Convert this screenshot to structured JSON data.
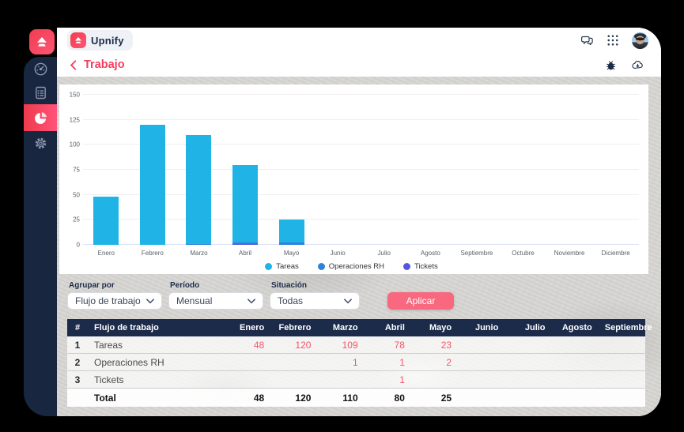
{
  "app": {
    "brand": "Upnify",
    "breadcrumb": "Trabajo"
  },
  "topbar": {
    "icons": [
      "chat-icon",
      "apps-grid-icon",
      "avatar"
    ]
  },
  "subheader": {
    "icons": [
      "bug-icon",
      "cloud-download-icon"
    ]
  },
  "sidebar": {
    "items": [
      {
        "name": "dashboard",
        "icon": "gauge-icon",
        "active": false
      },
      {
        "name": "reports",
        "icon": "checklist-icon",
        "active": false
      },
      {
        "name": "charts",
        "icon": "pie-chart-icon",
        "active": true
      },
      {
        "name": "settings",
        "icon": "gear-icon",
        "active": false
      }
    ],
    "active_color": "#ee3a4c"
  },
  "filters": {
    "groups": [
      {
        "label": "Agrupar por",
        "value": "Flujo de trabajo"
      },
      {
        "label": "Período",
        "value": "Mensual"
      },
      {
        "label": "Situación",
        "value": "Todas"
      }
    ],
    "apply_label": "Aplicar"
  },
  "chart_data": {
    "type": "bar",
    "stacked": true,
    "title": "",
    "xlabel": "",
    "ylabel": "",
    "ylim": [
      0,
      150
    ],
    "yticks": [
      0,
      25,
      50,
      75,
      100,
      125,
      150
    ],
    "grid": true,
    "legend_position": "bottom",
    "categories": [
      "Enero",
      "Febrero",
      "Marzo",
      "Abril",
      "Mayo",
      "Junio",
      "Julio",
      "Agosto",
      "Septiembre",
      "Octubre",
      "Noviembre",
      "Diciembre"
    ],
    "series": [
      {
        "name": "Tickets",
        "color": "#5457da",
        "values": [
          0,
          0,
          0,
          1,
          0,
          0,
          0,
          0,
          0,
          0,
          0,
          0
        ]
      },
      {
        "name": "Operaciones RH",
        "color": "#2d82dc",
        "values": [
          0,
          0,
          1,
          1,
          2,
          0,
          0,
          0,
          0,
          0,
          0,
          0
        ]
      },
      {
        "name": "Tareas",
        "color": "#1fb4e5",
        "values": [
          48,
          120,
          109,
          78,
          23,
          0,
          0,
          0,
          0,
          0,
          0,
          0
        ]
      }
    ],
    "legend_order": [
      "Tareas",
      "Operaciones RH",
      "Tickets"
    ]
  },
  "table": {
    "headers": [
      "#",
      "Flujo de trabajo",
      "Enero",
      "Febrero",
      "Marzo",
      "Abril",
      "Mayo",
      "Junio",
      "Julio",
      "Agosto",
      "Septiembre"
    ],
    "rows": [
      {
        "num": "1",
        "label": "Tareas",
        "values": [
          "48",
          "120",
          "109",
          "78",
          "23",
          "",
          "",
          "",
          ""
        ]
      },
      {
        "num": "2",
        "label": "Operaciones RH",
        "values": [
          "",
          "",
          "1",
          "1",
          "2",
          "",
          "",
          "",
          ""
        ]
      },
      {
        "num": "3",
        "label": "Tickets",
        "values": [
          "",
          "",
          "",
          "1",
          "",
          "",
          "",
          "",
          ""
        ]
      }
    ],
    "total": {
      "label": "Total",
      "values": [
        "48",
        "120",
        "110",
        "80",
        "25",
        "",
        "",
        "",
        ""
      ]
    }
  },
  "colors": {
    "sidebar_navy": "#18263f",
    "brand_gradient_start": "#f03d50",
    "brand_gradient_end": "#ff5577",
    "accent_pink": "#f43d5d",
    "apply_pink": "#f8697f",
    "table_header_navy": "#1c2b4a",
    "value_pink": "#f4556c",
    "bar_cyan": "#1fb4e5",
    "bar_blue": "#2d82dc",
    "bar_indigo": "#5457da"
  }
}
